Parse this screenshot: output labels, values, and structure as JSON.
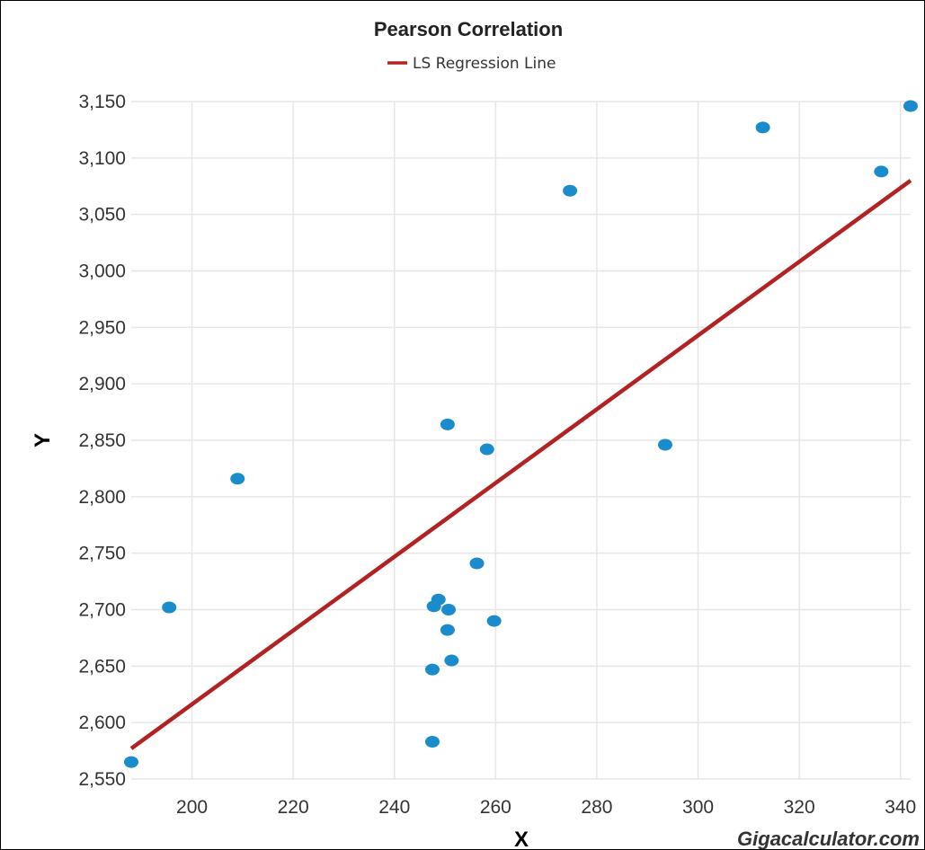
{
  "chart_data": {
    "type": "scatter",
    "title": "Pearson Correlation",
    "xlabel": "X",
    "ylabel": "Y",
    "xlim": [
      188,
      342
    ],
    "ylim": [
      2550,
      3150
    ],
    "x_ticks": [
      200,
      220,
      240,
      260,
      280,
      300,
      320,
      340
    ],
    "y_ticks": [
      2550,
      2600,
      2650,
      2700,
      2750,
      2800,
      2850,
      2900,
      2950,
      3000,
      3050,
      3100,
      3150
    ],
    "x_tick_labels": [
      "200",
      "220",
      "240",
      "260",
      "280",
      "300",
      "320",
      "340"
    ],
    "y_tick_labels": [
      "2,550",
      "2,600",
      "2,650",
      "2,700",
      "2,750",
      "2,800",
      "2,850",
      "2,900",
      "2,950",
      "3,000",
      "3,050",
      "3,100",
      "3,150"
    ],
    "grid": true,
    "legend": {
      "position": "top-center",
      "entries": [
        {
          "name": "LS Regression Line",
          "color": "#b22222"
        }
      ]
    },
    "points": [
      {
        "x": 188,
        "y": 2565
      },
      {
        "x": 195.5,
        "y": 2702
      },
      {
        "x": 209,
        "y": 2816
      },
      {
        "x": 247.5,
        "y": 2583
      },
      {
        "x": 247.5,
        "y": 2647
      },
      {
        "x": 247.8,
        "y": 2703
      },
      {
        "x": 248.7,
        "y": 2709
      },
      {
        "x": 250.5,
        "y": 2682
      },
      {
        "x": 250.7,
        "y": 2700
      },
      {
        "x": 251.3,
        "y": 2655
      },
      {
        "x": 250.5,
        "y": 2864
      },
      {
        "x": 256.3,
        "y": 2741
      },
      {
        "x": 258.3,
        "y": 2842
      },
      {
        "x": 259.7,
        "y": 2690
      },
      {
        "x": 274.7,
        "y": 3071
      },
      {
        "x": 293.5,
        "y": 2846
      },
      {
        "x": 312.8,
        "y": 3127
      },
      {
        "x": 336.2,
        "y": 3088
      },
      {
        "x": 342,
        "y": 3146
      }
    ],
    "regression_line": {
      "name": "LS Regression Line",
      "x": [
        188,
        342
      ],
      "y": [
        2577,
        3080
      ]
    },
    "point_color": "#1a8ccc",
    "line_color": "#b22222"
  },
  "watermark": "Gigacalculator.com"
}
